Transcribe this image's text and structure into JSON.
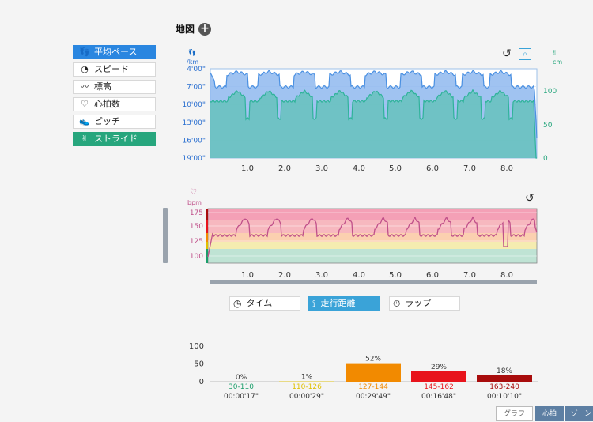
{
  "map": {
    "title": "地図",
    "add_icon": "plus-circle-icon"
  },
  "metrics": [
    {
      "label": "平均ペース",
      "icon": "footprints-icon",
      "state": "active-blue",
      "glyph": "👣"
    },
    {
      "label": "スピード",
      "icon": "speedometer-icon",
      "state": "",
      "glyph": "◔"
    },
    {
      "label": "標高",
      "icon": "elevation-icon",
      "state": "",
      "glyph": "〰"
    },
    {
      "label": "心拍数",
      "icon": "heart-icon",
      "state": "",
      "glyph": "♡"
    },
    {
      "label": "ピッチ",
      "icon": "steps-icon",
      "state": "",
      "glyph": "👟"
    },
    {
      "label": "ストライド",
      "icon": "stride-icon",
      "state": "active-green",
      "glyph": "✌"
    }
  ],
  "pace_chart": {
    "left_unit": "/km",
    "right_unit": "cm",
    "y_ticks": [
      "4'00\"",
      "7'00\"",
      "10'00\"",
      "13'00\"",
      "16'00\"",
      "19'00\""
    ],
    "right_ticks": [
      "100",
      "50",
      "0"
    ],
    "x_ticks": [
      "1.0",
      "2.0",
      "3.0",
      "4.0",
      "5.0",
      "6.0",
      "7.0",
      "8.0"
    ],
    "pace_color": "#4a90e2",
    "stride_color": "#2fb39a"
  },
  "hr_chart": {
    "unit": "bpm",
    "y_ticks": [
      "175",
      "150",
      "125",
      "100"
    ],
    "x_ticks": [
      "1.0",
      "2.0",
      "3.0",
      "4.0",
      "5.0",
      "6.0",
      "7.0",
      "8.0"
    ],
    "line_color": "#c0508a"
  },
  "segments": [
    {
      "label": "タイム",
      "icon": "clock-icon",
      "active": false,
      "glyph": "◷"
    },
    {
      "label": "走行距離",
      "icon": "distance-icon",
      "active": true,
      "glyph": "⟟"
    },
    {
      "label": "ラップ",
      "icon": "stopwatch-icon",
      "active": false,
      "glyph": "⏱"
    }
  ],
  "zone_chart": {
    "y_ticks": [
      "100",
      "50",
      "0"
    ],
    "zones": [
      {
        "pct": "0%",
        "range": "30-110",
        "time": "00:00'17\"",
        "value": 0,
        "color": "#1a9e6a"
      },
      {
        "pct": "1%",
        "range": "110-126",
        "time": "00:00'29\"",
        "value": 1,
        "color": "#e0c000"
      },
      {
        "pct": "52%",
        "range": "127-144",
        "time": "00:29'49\"",
        "value": 52,
        "color": "#f28a00"
      },
      {
        "pct": "29%",
        "range": "145-162",
        "time": "00:16'48\"",
        "value": 29,
        "color": "#e8141c"
      },
      {
        "pct": "18%",
        "range": "163-240",
        "time": "00:10'10\"",
        "value": 18,
        "color": "#a80c0c"
      }
    ]
  },
  "bottom_tabs": [
    {
      "label": "グラフ",
      "active": true
    },
    {
      "label": "心拍",
      "active": false
    },
    {
      "label": "ゾーン",
      "active": false
    }
  ]
}
